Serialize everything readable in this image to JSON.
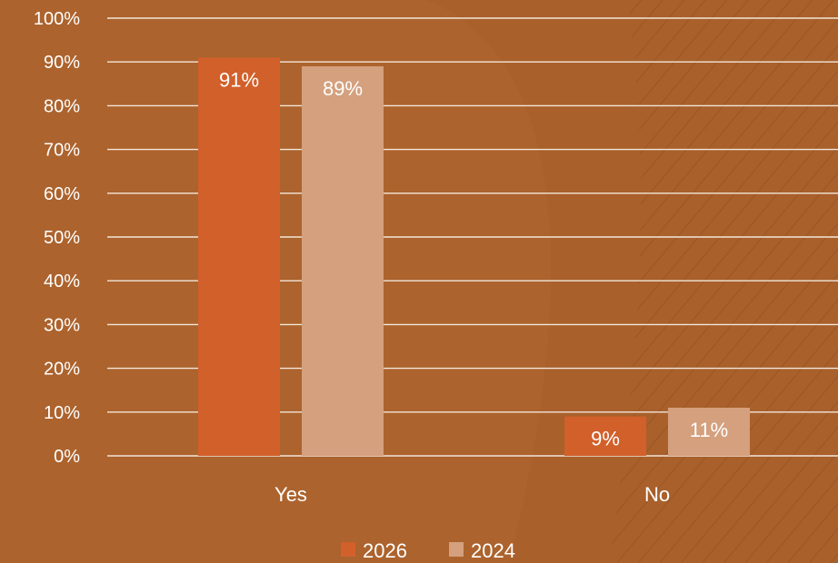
{
  "colors": {
    "background": "#A9602B",
    "gridline": "#F2E6DA",
    "series_2026": "#D2602B",
    "series_2024": "#D4A07E",
    "label_on_2026": "#FFFFFF",
    "label_on_2024": "#FFFFFF"
  },
  "chart_data": {
    "type": "bar",
    "categories": [
      "Yes",
      "No"
    ],
    "series": [
      {
        "name": "2026",
        "values": [
          91,
          9
        ],
        "labels": [
          "91%",
          "9%"
        ]
      },
      {
        "name": "2024",
        "values": [
          89,
          11
        ],
        "labels": [
          "89%",
          "11%"
        ]
      }
    ],
    "ylim": [
      0,
      100
    ],
    "yticks": [
      0,
      10,
      20,
      30,
      40,
      50,
      60,
      70,
      80,
      90,
      100
    ],
    "ytick_labels": [
      "0%",
      "10%",
      "20%",
      "30%",
      "40%",
      "50%",
      "60%",
      "70%",
      "80%",
      "90%",
      "100%"
    ],
    "grid": true,
    "legend_position": "bottom"
  }
}
